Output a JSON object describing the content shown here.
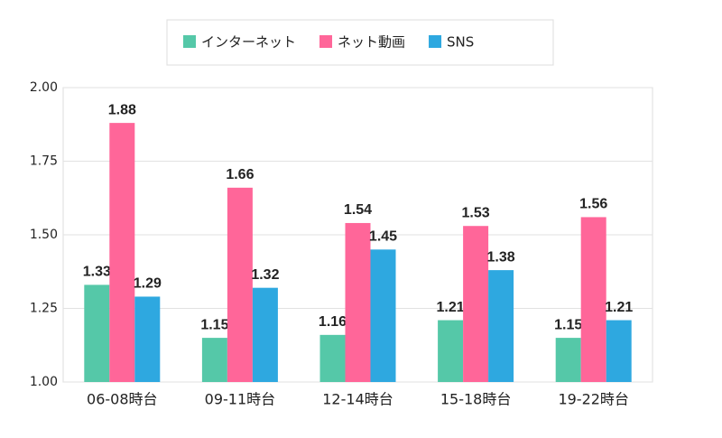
{
  "chart_data": {
    "type": "bar",
    "categories": [
      "06-08時台",
      "09-11時台",
      "12-14時台",
      "15-18時台",
      "19-22時台"
    ],
    "series": [
      {
        "name": "インターネット",
        "color": "#55c8a8",
        "values": [
          1.33,
          1.15,
          1.16,
          1.21,
          1.15
        ]
      },
      {
        "name": "ネット動画",
        "color": "#ff6699",
        "values": [
          1.88,
          1.66,
          1.54,
          1.53,
          1.56
        ]
      },
      {
        "name": "SNS",
        "color": "#2ea8e0",
        "values": [
          1.29,
          1.32,
          1.45,
          1.38,
          1.21
        ]
      }
    ],
    "ylim": [
      1,
      2
    ],
    "yticks": [
      {
        "value": 1,
        "label": "1.00"
      },
      {
        "value": 1.25,
        "label": "1.25"
      },
      {
        "value": 1.5,
        "label": "1.50"
      },
      {
        "value": 1.75,
        "label": "1.75"
      },
      {
        "value": 2,
        "label": "2.00"
      }
    ],
    "grid": true,
    "legend": "top"
  }
}
